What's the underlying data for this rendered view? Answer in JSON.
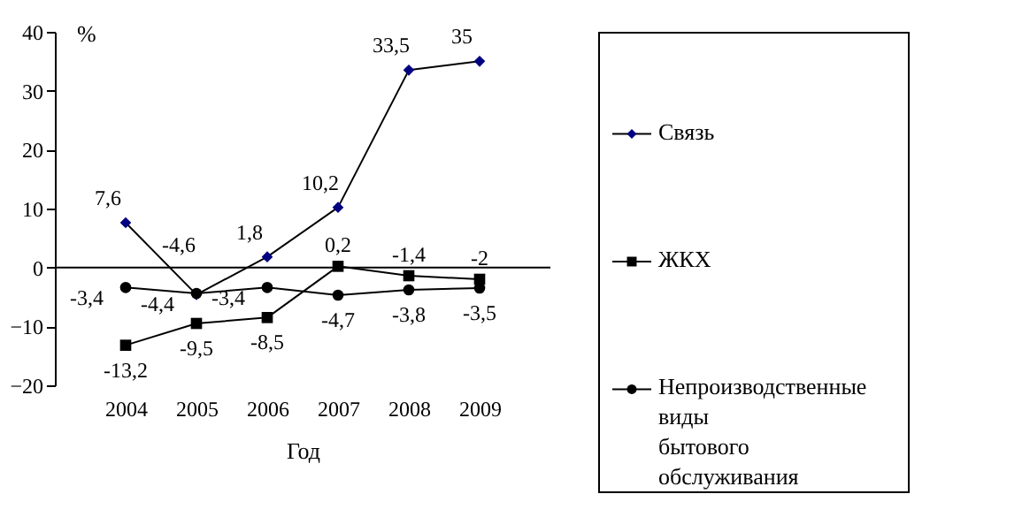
{
  "chart_data": {
    "type": "line",
    "xlabel": "Год",
    "ylabel": "%",
    "categories": [
      "2004",
      "2005",
      "2006",
      "2007",
      "2008",
      "2009"
    ],
    "ylim": [
      -20,
      40
    ],
    "yticks": [
      -20,
      -10,
      0,
      10,
      20,
      30,
      40
    ],
    "grid": false,
    "legend": "right",
    "data_labels": true,
    "line_style": "solid",
    "ref_lines": [
      {
        "axis": "y",
        "value": 0
      }
    ],
    "series": [
      {
        "name": "Связь",
        "color": "#000080",
        "marker": "diamond",
        "values": [
          7.6,
          -4.6,
          1.8,
          10.2,
          33.5,
          35
        ],
        "value_labels": [
          "7,6",
          "-4,6",
          "1,8",
          "10,2",
          "33,5",
          "35"
        ]
      },
      {
        "name": "ЖКХ",
        "color": "#000000",
        "marker": "square",
        "values": [
          -13.2,
          -9.5,
          -8.5,
          0.2,
          -1.4,
          -2
        ],
        "value_labels": [
          "-13,2",
          "-9,5",
          "-8,5",
          "0,2",
          "-1,4",
          "-2"
        ]
      },
      {
        "name": "Непроизводственные виды бытового обслуживания",
        "color": "#000000",
        "marker": "circle",
        "values": [
          -3.4,
          -4.4,
          -3.4,
          -4.7,
          -3.8,
          -3.5
        ],
        "value_labels": [
          "-3,4",
          "-4,4",
          "-3,4",
          "-4,7",
          "-3,8",
          "-3,5"
        ]
      }
    ]
  }
}
